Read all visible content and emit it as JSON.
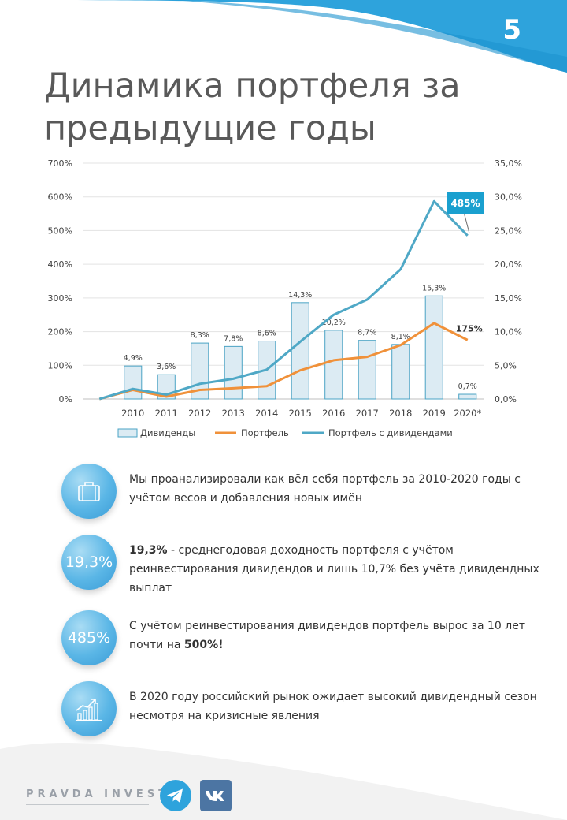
{
  "page_number": "5",
  "title_line1": "Динамика портфеля за",
  "title_line2": "предыдущие годы",
  "colors": {
    "accent": "#2ea3dc",
    "bar_fill": "#dcebf3",
    "bar_stroke": "#4aa3c4",
    "line_portfolio": "#f0913a",
    "line_dividends": "#4fa8c6",
    "callout_bg": "#1aa0cf"
  },
  "chart_data": {
    "type": "bar+line",
    "categories": [
      "",
      "2010",
      "2011",
      "2012",
      "2013",
      "2014",
      "2015",
      "2016",
      "2017",
      "2018",
      "2019",
      "2020*"
    ],
    "left_axis": {
      "range": [
        0,
        700
      ],
      "ticks": [
        "0%",
        "100%",
        "200%",
        "300%",
        "400%",
        "500%",
        "600%",
        "700%"
      ]
    },
    "right_axis": {
      "range": [
        0,
        35
      ],
      "ticks": [
        "0,0%",
        "5,0%",
        "10,0%",
        "15,0%",
        "20,0%",
        "25,0%",
        "30,0%",
        "35,0%"
      ]
    },
    "series": [
      {
        "name": "Дивиденды",
        "type": "bar",
        "axis": "right",
        "values": [
          null,
          4.9,
          3.6,
          8.3,
          7.8,
          8.6,
          14.3,
          10.2,
          8.7,
          8.1,
          15.3,
          0.7
        ],
        "labels": [
          "",
          "4,9%",
          "3,6%",
          "8,3%",
          "7,8%",
          "8,6%",
          "14,3%",
          "10,2%",
          "8,7%",
          "8,1%",
          "15,3%",
          "0,7%"
        ]
      },
      {
        "name": "Портфель",
        "type": "line",
        "axis": "left",
        "values": [
          0,
          27,
          7,
          27,
          32,
          38,
          85,
          115,
          125,
          160,
          225,
          175
        ],
        "end_label": "175%"
      },
      {
        "name": "Портфель с дивидендами",
        "type": "line",
        "axis": "left",
        "values": [
          0,
          30,
          13,
          45,
          60,
          87,
          170,
          250,
          295,
          385,
          587,
          485
        ],
        "end_label": "485%"
      }
    ],
    "legend": [
      "Дивиденды",
      "Портфель",
      "Портфель с дивидендами"
    ],
    "legend_position": "bottom"
  },
  "features": [
    {
      "icon": "briefcase-icon",
      "circle_text": "",
      "bold": "",
      "text": "Мы проанализировали  как вёл себя портфель за 2010-2020 годы с учётом весов и добавления  новых имён",
      "bold_end": ""
    },
    {
      "icon": "",
      "circle_text": "19,3%",
      "bold": "19,3%",
      "text": " - среднегодовая доходность портфеля с учётом реинвестирования  дивидендов  и лишь 10,7% без учёта дивидендных выплат",
      "bold_end": ""
    },
    {
      "icon": "",
      "circle_text": "485%",
      "bold": "",
      "text": "С учётом реинвестирования  дивидендов портфель вырос за 10 лет почти на ",
      "bold_end": "500%!"
    },
    {
      "icon": "growth-chart-icon",
      "circle_text": "",
      "bold": "",
      "text": "В 2020 году российский  рынок ожидает высокий  дивидендный сезон  несмотря на кризисные явления",
      "bold_end": ""
    }
  ],
  "footer": {
    "brand": "PRAVDA INVEST"
  }
}
